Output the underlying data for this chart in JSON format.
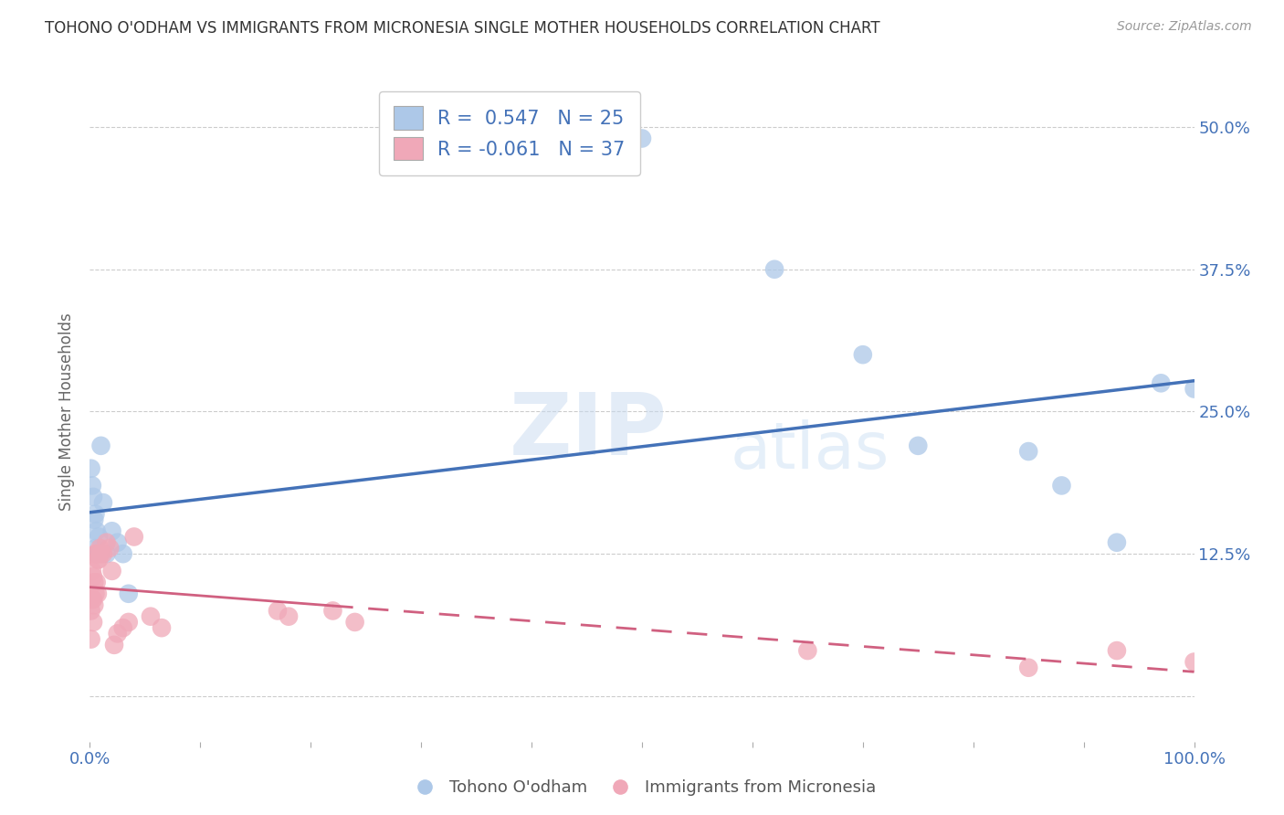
{
  "title": "TOHONO O'ODHAM VS IMMIGRANTS FROM MICRONESIA SINGLE MOTHER HOUSEHOLDS CORRELATION CHART",
  "source": "Source: ZipAtlas.com",
  "xlabel_blue": "Tohono O'odham",
  "xlabel_pink": "Immigrants from Micronesia",
  "ylabel": "Single Mother Households",
  "r_blue": 0.547,
  "n_blue": 25,
  "r_pink": -0.061,
  "n_pink": 37,
  "blue_color": "#adc8e8",
  "blue_line_color": "#4472b8",
  "pink_color": "#f0a8b8",
  "pink_line_color": "#d06080",
  "watermark_zip": "ZIP",
  "watermark_atlas": "atlas",
  "blue_dots_x": [
    0.001,
    0.002,
    0.003,
    0.004,
    0.005,
    0.005,
    0.006,
    0.007,
    0.008,
    0.01,
    0.012,
    0.015,
    0.02,
    0.025,
    0.03,
    0.035,
    0.5,
    0.62,
    0.7,
    0.75,
    0.85,
    0.88,
    0.93,
    0.97,
    1.0
  ],
  "blue_dots_y": [
    0.2,
    0.185,
    0.175,
    0.155,
    0.16,
    0.13,
    0.145,
    0.125,
    0.14,
    0.22,
    0.17,
    0.125,
    0.145,
    0.135,
    0.125,
    0.09,
    0.49,
    0.375,
    0.3,
    0.22,
    0.215,
    0.185,
    0.135,
    0.275,
    0.27
  ],
  "pink_dots_x": [
    0.001,
    0.001,
    0.002,
    0.002,
    0.003,
    0.003,
    0.003,
    0.004,
    0.004,
    0.005,
    0.005,
    0.006,
    0.006,
    0.007,
    0.007,
    0.008,
    0.009,
    0.01,
    0.012,
    0.015,
    0.018,
    0.02,
    0.022,
    0.025,
    0.03,
    0.035,
    0.04,
    0.055,
    0.065,
    0.17,
    0.18,
    0.22,
    0.24,
    0.65,
    0.85,
    0.93,
    1.0
  ],
  "pink_dots_y": [
    0.075,
    0.05,
    0.11,
    0.085,
    0.105,
    0.085,
    0.065,
    0.1,
    0.08,
    0.125,
    0.09,
    0.125,
    0.1,
    0.12,
    0.09,
    0.12,
    0.13,
    0.125,
    0.125,
    0.135,
    0.13,
    0.11,
    0.045,
    0.055,
    0.06,
    0.065,
    0.14,
    0.07,
    0.06,
    0.075,
    0.07,
    0.075,
    0.065,
    0.04,
    0.025,
    0.04,
    0.03
  ],
  "xlim": [
    0.0,
    1.0
  ],
  "ylim": [
    -0.04,
    0.54
  ],
  "yticks": [
    0.0,
    0.125,
    0.25,
    0.375,
    0.5
  ],
  "ytick_labels": [
    "",
    "12.5%",
    "25.0%",
    "37.5%",
    "50.0%"
  ],
  "xticks": [
    0.0,
    0.1,
    0.2,
    0.3,
    0.4,
    0.5,
    0.6,
    0.7,
    0.8,
    0.9,
    1.0
  ],
  "xtick_major_labels": [
    "0.0%",
    "",
    "",
    "",
    "",
    "",
    "",
    "",
    "",
    "",
    "100.0%"
  ],
  "background_color": "#ffffff",
  "grid_color": "#cccccc",
  "title_color": "#333333",
  "source_color": "#999999",
  "tick_color": "#4472b8",
  "axis_label_color": "#666666"
}
